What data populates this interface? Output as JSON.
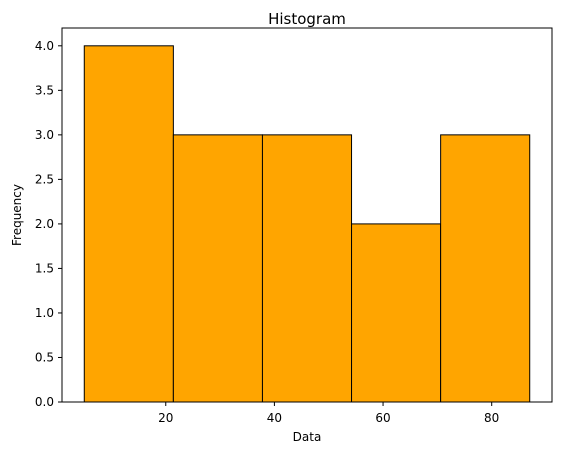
{
  "chart_data": {
    "type": "bar",
    "title": "Histogram",
    "xlabel": "Data",
    "ylabel": "Frequency",
    "bins": [
      {
        "start": 5,
        "end": 21.4,
        "count": 4
      },
      {
        "start": 21.4,
        "end": 37.8,
        "count": 3
      },
      {
        "start": 37.8,
        "end": 54.2,
        "count": 3
      },
      {
        "start": 54.2,
        "end": 70.6,
        "count": 2
      },
      {
        "start": 70.6,
        "end": 87,
        "count": 3
      }
    ],
    "xlim": [
      0.9,
      91.1
    ],
    "ylim": [
      0,
      4.2
    ],
    "x_ticks": [
      20,
      40,
      60,
      80
    ],
    "y_ticks": [
      0,
      0.5,
      1.0,
      1.5,
      2.0,
      2.5,
      3.0,
      3.5,
      4.0
    ],
    "grid": false,
    "legend": "none",
    "bar_color": "#ffa500",
    "edge_color": "#000000"
  }
}
